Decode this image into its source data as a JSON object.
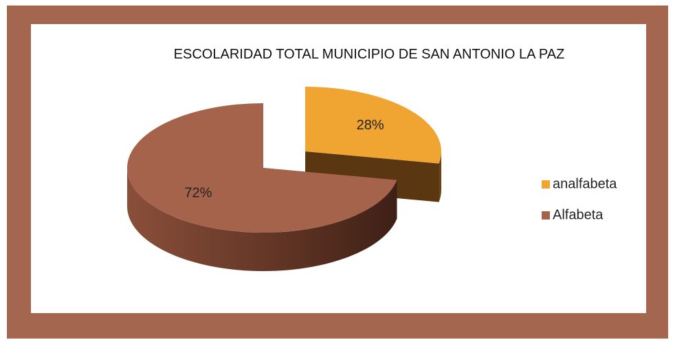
{
  "chart_data": {
    "type": "pie",
    "title": "ESCOLARIDAD TOTAL  MUNICIPIO DE SAN ANTONIO LA PAZ",
    "categories": [
      "analfabeta",
      "Alfabeta"
    ],
    "values": [
      28,
      72
    ],
    "value_labels": [
      "28%",
      "72%"
    ],
    "colors": [
      "#f0a431",
      "#a5634b"
    ],
    "explode": [
      0.4,
      0
    ],
    "legend": "right"
  }
}
